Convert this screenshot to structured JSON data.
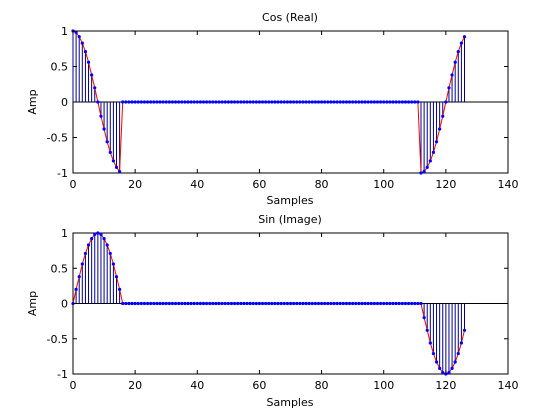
{
  "chart_data": [
    {
      "type": "stem",
      "title": "Cos (Real)",
      "xlabel": "Samples",
      "ylabel": "Amp",
      "xlim": [
        0,
        140
      ],
      "ylim": [
        -1,
        1
      ],
      "xticks": [
        0,
        20,
        40,
        60,
        80,
        100,
        120,
        140
      ],
      "yticks": [
        -1,
        -0.5,
        0,
        0.5,
        1
      ],
      "xtick_labels": [
        "0",
        "20",
        "40",
        "60",
        "80",
        "100",
        "120",
        "140"
      ],
      "ytick_labels": [
        "-1",
        "-0.5",
        "0",
        "0.5",
        "1"
      ],
      "grid": false,
      "stem_color": "#00008b",
      "marker_color": "#0000ff",
      "line_color": "#ff0000",
      "series": [
        {
          "x": [
            0,
            1,
            2,
            3,
            4,
            5,
            6,
            7,
            8,
            9,
            10,
            11,
            12,
            13,
            14,
            15,
            16,
            17,
            18,
            19,
            20,
            21,
            22,
            23,
            24,
            25,
            26,
            27,
            28,
            29,
            30,
            31,
            32,
            33,
            34,
            35,
            36,
            37,
            38,
            39,
            40,
            41,
            42,
            43,
            44,
            45,
            46,
            47,
            48,
            49,
            50,
            51,
            52,
            53,
            54,
            55,
            56,
            57,
            58,
            59,
            60,
            61,
            62,
            63,
            64,
            65,
            66,
            67,
            68,
            69,
            70,
            71,
            72,
            73,
            74,
            75,
            76,
            77,
            78,
            79,
            80,
            81,
            82,
            83,
            84,
            85,
            86,
            87,
            88,
            89,
            90,
            91,
            92,
            93,
            94,
            95,
            96,
            97,
            98,
            99,
            100,
            101,
            102,
            103,
            104,
            105,
            106,
            107,
            108,
            109,
            110,
            111,
            112,
            113,
            114,
            115,
            116,
            117,
            118,
            119,
            120,
            121,
            122,
            123,
            124,
            125,
            126
          ],
          "y": [
            1.0,
            0.98,
            0.92,
            0.83,
            0.71,
            0.56,
            0.38,
            0.2,
            0.0,
            -0.2,
            -0.38,
            -0.56,
            -0.71,
            -0.83,
            -0.92,
            -0.98,
            0,
            0,
            0,
            0,
            0,
            0,
            0,
            0,
            0,
            0,
            0,
            0,
            0,
            0,
            0,
            0,
            0,
            0,
            0,
            0,
            0,
            0,
            0,
            0,
            0,
            0,
            0,
            0,
            0,
            0,
            0,
            0,
            0,
            0,
            0,
            0,
            0,
            0,
            0,
            0,
            0,
            0,
            0,
            0,
            0,
            0,
            0,
            0,
            0,
            0,
            0,
            0,
            0,
            0,
            0,
            0,
            0,
            0,
            0,
            0,
            0,
            0,
            0,
            0,
            0,
            0,
            0,
            0,
            0,
            0,
            0,
            0,
            0,
            0,
            0,
            0,
            0,
            0,
            0,
            0,
            0,
            0,
            0,
            0,
            0,
            0,
            0,
            0,
            0,
            0,
            0,
            0,
            0,
            0,
            0,
            0,
            -1.0,
            -0.98,
            -0.92,
            -0.83,
            -0.71,
            -0.56,
            -0.38,
            -0.2,
            0.0,
            0.2,
            0.38,
            0.56,
            0.71,
            0.83,
            0.92
          ]
        }
      ]
    },
    {
      "type": "stem",
      "title": "Sin (Image)",
      "xlabel": "Samples",
      "ylabel": "Amp",
      "xlim": [
        0,
        140
      ],
      "ylim": [
        -1,
        1
      ],
      "xticks": [
        0,
        20,
        40,
        60,
        80,
        100,
        120,
        140
      ],
      "yticks": [
        -1,
        -0.5,
        0,
        0.5,
        1
      ],
      "xtick_labels": [
        "0",
        "20",
        "40",
        "60",
        "80",
        "100",
        "120",
        "140"
      ],
      "ytick_labels": [
        "-1",
        "-0.5",
        "0",
        "0.5",
        "1"
      ],
      "grid": false,
      "stem_color": "#00008b",
      "marker_color": "#0000ff",
      "line_color": "#ff0000",
      "series": [
        {
          "x": [
            0,
            1,
            2,
            3,
            4,
            5,
            6,
            7,
            8,
            9,
            10,
            11,
            12,
            13,
            14,
            15,
            16,
            17,
            18,
            19,
            20,
            21,
            22,
            23,
            24,
            25,
            26,
            27,
            28,
            29,
            30,
            31,
            32,
            33,
            34,
            35,
            36,
            37,
            38,
            39,
            40,
            41,
            42,
            43,
            44,
            45,
            46,
            47,
            48,
            49,
            50,
            51,
            52,
            53,
            54,
            55,
            56,
            57,
            58,
            59,
            60,
            61,
            62,
            63,
            64,
            65,
            66,
            67,
            68,
            69,
            70,
            71,
            72,
            73,
            74,
            75,
            76,
            77,
            78,
            79,
            80,
            81,
            82,
            83,
            84,
            85,
            86,
            87,
            88,
            89,
            90,
            91,
            92,
            93,
            94,
            95,
            96,
            97,
            98,
            99,
            100,
            101,
            102,
            103,
            104,
            105,
            106,
            107,
            108,
            109,
            110,
            111,
            112,
            113,
            114,
            115,
            116,
            117,
            118,
            119,
            120,
            121,
            122,
            123,
            124,
            125,
            126
          ],
          "y": [
            0.0,
            0.2,
            0.38,
            0.56,
            0.71,
            0.83,
            0.92,
            0.98,
            1.0,
            0.98,
            0.92,
            0.83,
            0.71,
            0.56,
            0.38,
            0.2,
            0,
            0,
            0,
            0,
            0,
            0,
            0,
            0,
            0,
            0,
            0,
            0,
            0,
            0,
            0,
            0,
            0,
            0,
            0,
            0,
            0,
            0,
            0,
            0,
            0,
            0,
            0,
            0,
            0,
            0,
            0,
            0,
            0,
            0,
            0,
            0,
            0,
            0,
            0,
            0,
            0,
            0,
            0,
            0,
            0,
            0,
            0,
            0,
            0,
            0,
            0,
            0,
            0,
            0,
            0,
            0,
            0,
            0,
            0,
            0,
            0,
            0,
            0,
            0,
            0,
            0,
            0,
            0,
            0,
            0,
            0,
            0,
            0,
            0,
            0,
            0,
            0,
            0,
            0,
            0,
            0,
            0,
            0,
            0,
            0,
            0,
            0,
            0,
            0,
            0,
            0,
            0,
            0,
            0,
            0,
            0,
            0.0,
            -0.2,
            -0.38,
            -0.56,
            -0.71,
            -0.83,
            -0.92,
            -0.98,
            -1.0,
            -0.98,
            -0.92,
            -0.83,
            -0.71,
            -0.56,
            -0.38
          ]
        }
      ]
    }
  ]
}
